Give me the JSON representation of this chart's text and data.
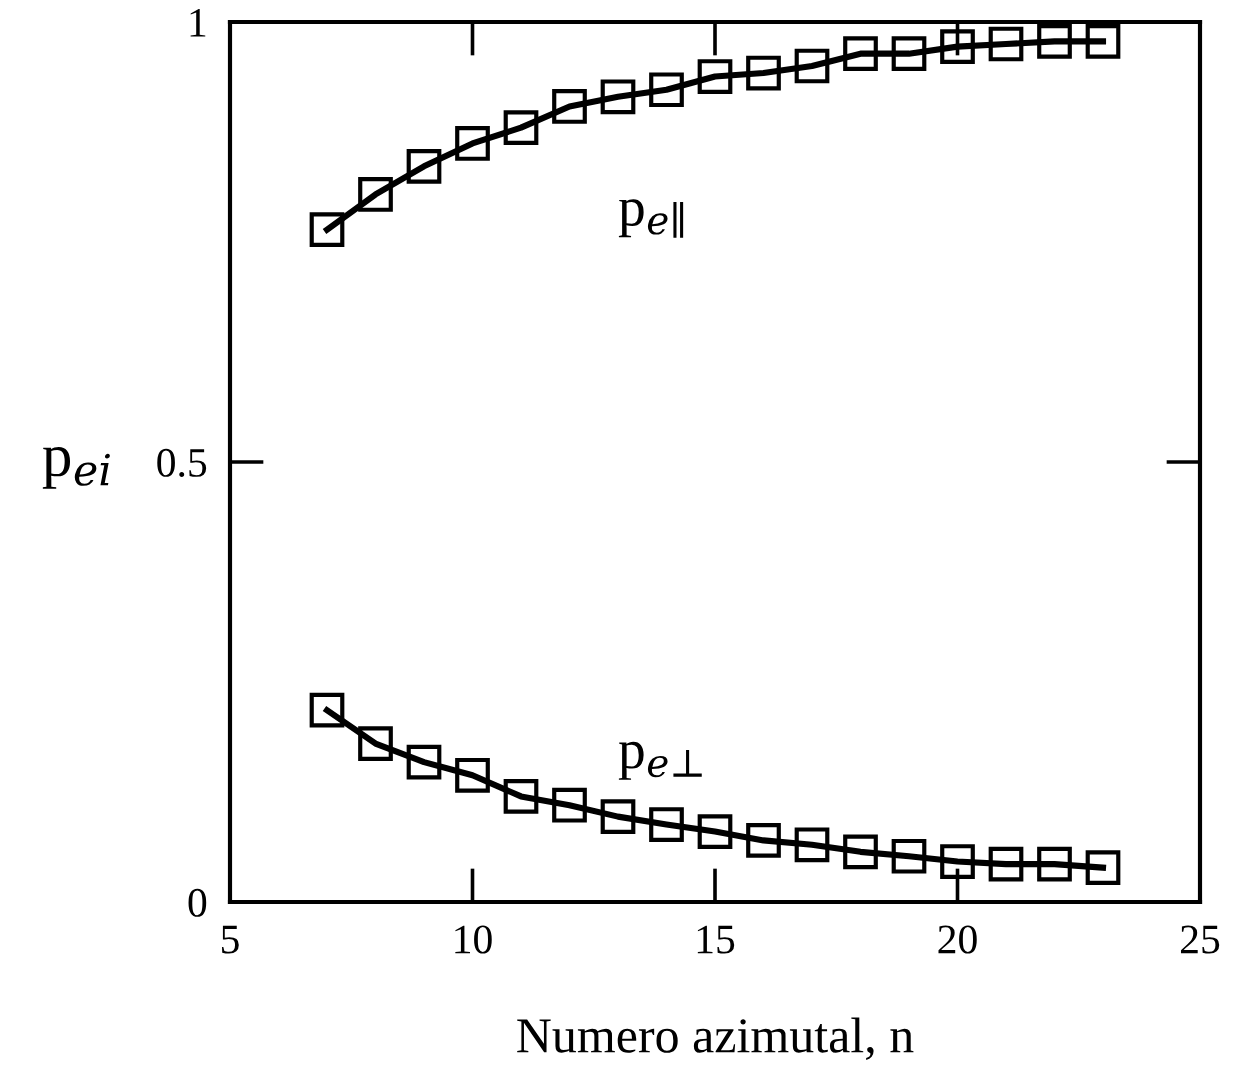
{
  "chart_data": {
    "type": "line",
    "xlabel": "Numero azimutal, n",
    "ylabel": "p$_{ei}$",
    "xlim": [
      5,
      25
    ],
    "ylim": [
      0,
      1
    ],
    "xticks": [
      5,
      10,
      15,
      20,
      25
    ],
    "yticks": [
      0,
      0.5,
      1
    ],
    "marker": "square",
    "line_style": "solid",
    "grid": false,
    "legend": false,
    "x": [
      7,
      8,
      9,
      10,
      11,
      12,
      13,
      14,
      15,
      16,
      17,
      18,
      19,
      20,
      21,
      22,
      23
    ],
    "series": [
      {
        "name": "p$_{e∥}$",
        "color": "#000000",
        "values": [
          0.764,
          0.804,
          0.836,
          0.862,
          0.88,
          0.904,
          0.915,
          0.923,
          0.938,
          0.942,
          0.95,
          0.964,
          0.964,
          0.972,
          0.975,
          0.978,
          0.978
        ]
      },
      {
        "name": "p$_{e⊥}$",
        "color": "#000000",
        "values": [
          0.218,
          0.18,
          0.159,
          0.144,
          0.12,
          0.11,
          0.097,
          0.088,
          0.08,
          0.07,
          0.065,
          0.057,
          0.052,
          0.046,
          0.043,
          0.043,
          0.039
        ]
      }
    ]
  }
}
